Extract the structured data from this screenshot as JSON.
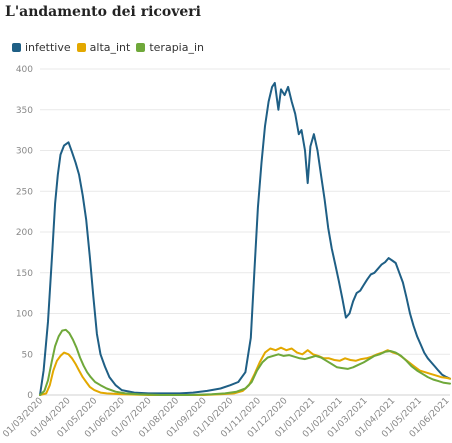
{
  "header": {
    "title": "L'andamento dei ricoveri"
  },
  "chart_data": {
    "type": "line",
    "title": "L'andamento dei ricoveri",
    "xlabel": "",
    "ylabel": "",
    "ylim": [
      0,
      400
    ],
    "yticks": [
      0,
      50,
      100,
      150,
      200,
      250,
      300,
      350,
      400
    ],
    "xlim": [
      "2020-03-01",
      "2021-06-05"
    ],
    "xticks": [
      "01/03/2020",
      "01/04/2020",
      "01/05/2020",
      "01/06/2020",
      "01/07/2020",
      "01/08/2020",
      "01/09/2020",
      "01/10/2020",
      "01/11/2020",
      "01/12/2020",
      "01/01/2021",
      "01/02/2021",
      "01/03/2021",
      "01/04/2021",
      "01/05/2021",
      "01/06/2021"
    ],
    "grid": "horizontal",
    "legend_position": "top-left",
    "series": [
      {
        "name": "infettive",
        "color": "#1f5f85",
        "points": [
          [
            "2020-03-01",
            0
          ],
          [
            "2020-03-05",
            30
          ],
          [
            "2020-03-10",
            90
          ],
          [
            "2020-03-15",
            180
          ],
          [
            "2020-03-18",
            235
          ],
          [
            "2020-03-21",
            270
          ],
          [
            "2020-03-24",
            295
          ],
          [
            "2020-03-28",
            306
          ],
          [
            "2020-04-02",
            310
          ],
          [
            "2020-04-06",
            298
          ],
          [
            "2020-04-10",
            285
          ],
          [
            "2020-04-14",
            270
          ],
          [
            "2020-04-18",
            245
          ],
          [
            "2020-04-22",
            215
          ],
          [
            "2020-04-26",
            170
          ],
          [
            "2020-04-30",
            120
          ],
          [
            "2020-05-04",
            75
          ],
          [
            "2020-05-08",
            50
          ],
          [
            "2020-05-13",
            35
          ],
          [
            "2020-05-18",
            22
          ],
          [
            "2020-05-25",
            12
          ],
          [
            "2020-06-01",
            6
          ],
          [
            "2020-06-15",
            3
          ],
          [
            "2020-07-01",
            2
          ],
          [
            "2020-07-20",
            2
          ],
          [
            "2020-08-05",
            2
          ],
          [
            "2020-08-20",
            3
          ],
          [
            "2020-09-05",
            5
          ],
          [
            "2020-09-20",
            8
          ],
          [
            "2020-10-01",
            12
          ],
          [
            "2020-10-10",
            16
          ],
          [
            "2020-10-18",
            28
          ],
          [
            "2020-10-24",
            70
          ],
          [
            "2020-10-28",
            150
          ],
          [
            "2020-11-01",
            230
          ],
          [
            "2020-11-05",
            285
          ],
          [
            "2020-11-09",
            330
          ],
          [
            "2020-11-13",
            360
          ],
          [
            "2020-11-17",
            378
          ],
          [
            "2020-11-20",
            383
          ],
          [
            "2020-11-24",
            350
          ],
          [
            "2020-11-27",
            375
          ],
          [
            "2020-12-01",
            368
          ],
          [
            "2020-12-05",
            378
          ],
          [
            "2020-12-09",
            360
          ],
          [
            "2020-12-13",
            345
          ],
          [
            "2020-12-17",
            320
          ],
          [
            "2020-12-20",
            325
          ],
          [
            "2020-12-24",
            300
          ],
          [
            "2020-12-27",
            260
          ],
          [
            "2020-12-30",
            305
          ],
          [
            "2021-01-03",
            320
          ],
          [
            "2021-01-07",
            300
          ],
          [
            "2021-01-11",
            270
          ],
          [
            "2021-01-15",
            240
          ],
          [
            "2021-01-19",
            205
          ],
          [
            "2021-01-23",
            180
          ],
          [
            "2021-01-27",
            160
          ],
          [
            "2021-01-31",
            140
          ],
          [
            "2021-02-04",
            118
          ],
          [
            "2021-02-08",
            95
          ],
          [
            "2021-02-12",
            100
          ],
          [
            "2021-02-16",
            115
          ],
          [
            "2021-02-20",
            125
          ],
          [
            "2021-02-24",
            128
          ],
          [
            "2021-02-28",
            135
          ],
          [
            "2021-03-04",
            142
          ],
          [
            "2021-03-08",
            148
          ],
          [
            "2021-03-12",
            150
          ],
          [
            "2021-03-16",
            155
          ],
          [
            "2021-03-20",
            160
          ],
          [
            "2021-03-24",
            163
          ],
          [
            "2021-03-28",
            168
          ],
          [
            "2021-04-01",
            165
          ],
          [
            "2021-04-05",
            162
          ],
          [
            "2021-04-09",
            150
          ],
          [
            "2021-04-13",
            138
          ],
          [
            "2021-04-17",
            120
          ],
          [
            "2021-04-21",
            100
          ],
          [
            "2021-04-25",
            85
          ],
          [
            "2021-04-29",
            72
          ],
          [
            "2021-05-03",
            62
          ],
          [
            "2021-05-07",
            52
          ],
          [
            "2021-05-11",
            45
          ],
          [
            "2021-05-15",
            40
          ],
          [
            "2021-05-19",
            35
          ],
          [
            "2021-05-23",
            30
          ],
          [
            "2021-05-27",
            25
          ],
          [
            "2021-06-01",
            22
          ],
          [
            "2021-06-05",
            20
          ]
        ]
      },
      {
        "name": "alta_int",
        "color": "#e3a800",
        "points": [
          [
            "2020-03-01",
            0
          ],
          [
            "2020-03-08",
            2
          ],
          [
            "2020-03-12",
            12
          ],
          [
            "2020-03-16",
            30
          ],
          [
            "2020-03-20",
            42
          ],
          [
            "2020-03-24",
            48
          ],
          [
            "2020-03-28",
            52
          ],
          [
            "2020-04-02",
            50
          ],
          [
            "2020-04-06",
            45
          ],
          [
            "2020-04-10",
            38
          ],
          [
            "2020-04-14",
            30
          ],
          [
            "2020-04-18",
            22
          ],
          [
            "2020-04-22",
            16
          ],
          [
            "2020-04-26",
            10
          ],
          [
            "2020-05-01",
            6
          ],
          [
            "2020-05-08",
            3
          ],
          [
            "2020-05-15",
            2
          ],
          [
            "2020-06-01",
            1
          ],
          [
            "2020-07-01",
            0
          ],
          [
            "2020-08-01",
            0
          ],
          [
            "2020-09-01",
            0
          ],
          [
            "2020-09-20",
            1
          ],
          [
            "2020-10-05",
            2
          ],
          [
            "2020-10-15",
            5
          ],
          [
            "2020-10-22",
            12
          ],
          [
            "2020-10-28",
            25
          ],
          [
            "2020-11-03",
            40
          ],
          [
            "2020-11-09",
            52
          ],
          [
            "2020-11-15",
            57
          ],
          [
            "2020-11-21",
            55
          ],
          [
            "2020-11-27",
            58
          ],
          [
            "2020-12-03",
            55
          ],
          [
            "2020-12-09",
            57
          ],
          [
            "2020-12-15",
            52
          ],
          [
            "2020-12-21",
            50
          ],
          [
            "2020-12-27",
            55
          ],
          [
            "2021-01-02",
            50
          ],
          [
            "2021-01-08",
            48
          ],
          [
            "2021-01-14",
            45
          ],
          [
            "2021-01-20",
            45
          ],
          [
            "2021-01-26",
            43
          ],
          [
            "2021-02-01",
            42
          ],
          [
            "2021-02-07",
            45
          ],
          [
            "2021-02-13",
            43
          ],
          [
            "2021-02-19",
            42
          ],
          [
            "2021-02-25",
            44
          ],
          [
            "2021-03-03",
            45
          ],
          [
            "2021-03-09",
            47
          ],
          [
            "2021-03-15",
            50
          ],
          [
            "2021-03-21",
            52
          ],
          [
            "2021-03-27",
            55
          ],
          [
            "2021-04-02",
            52
          ],
          [
            "2021-04-08",
            50
          ],
          [
            "2021-04-14",
            45
          ],
          [
            "2021-04-20",
            40
          ],
          [
            "2021-04-26",
            35
          ],
          [
            "2021-05-02",
            30
          ],
          [
            "2021-05-08",
            28
          ],
          [
            "2021-05-14",
            26
          ],
          [
            "2021-05-20",
            24
          ],
          [
            "2021-05-26",
            22
          ],
          [
            "2021-06-01",
            21
          ],
          [
            "2021-06-05",
            20
          ]
        ]
      },
      {
        "name": "terapia_in",
        "color": "#6fa83a",
        "points": [
          [
            "2020-03-01",
            0
          ],
          [
            "2020-03-06",
            5
          ],
          [
            "2020-03-10",
            18
          ],
          [
            "2020-03-14",
            40
          ],
          [
            "2020-03-18",
            60
          ],
          [
            "2020-03-22",
            72
          ],
          [
            "2020-03-26",
            79
          ],
          [
            "2020-03-30",
            80
          ],
          [
            "2020-04-03",
            76
          ],
          [
            "2020-04-07",
            68
          ],
          [
            "2020-04-11",
            58
          ],
          [
            "2020-04-15",
            46
          ],
          [
            "2020-04-19",
            36
          ],
          [
            "2020-04-23",
            28
          ],
          [
            "2020-04-27",
            22
          ],
          [
            "2020-05-02",
            16
          ],
          [
            "2020-05-08",
            12
          ],
          [
            "2020-05-15",
            8
          ],
          [
            "2020-05-25",
            4
          ],
          [
            "2020-06-05",
            2
          ],
          [
            "2020-06-20",
            1
          ],
          [
            "2020-07-15",
            0
          ],
          [
            "2020-08-15",
            0
          ],
          [
            "2020-09-10",
            1
          ],
          [
            "2020-09-25",
            2
          ],
          [
            "2020-10-08",
            4
          ],
          [
            "2020-10-18",
            8
          ],
          [
            "2020-10-25",
            16
          ],
          [
            "2020-10-31",
            30
          ],
          [
            "2020-11-06",
            40
          ],
          [
            "2020-11-12",
            46
          ],
          [
            "2020-11-18",
            48
          ],
          [
            "2020-11-24",
            50
          ],
          [
            "2020-11-30",
            48
          ],
          [
            "2020-12-06",
            49
          ],
          [
            "2020-12-12",
            47
          ],
          [
            "2020-12-18",
            45
          ],
          [
            "2020-12-24",
            44
          ],
          [
            "2020-12-30",
            46
          ],
          [
            "2021-01-05",
            48
          ],
          [
            "2021-01-11",
            46
          ],
          [
            "2021-01-17",
            42
          ],
          [
            "2021-01-23",
            38
          ],
          [
            "2021-01-29",
            34
          ],
          [
            "2021-02-04",
            33
          ],
          [
            "2021-02-10",
            32
          ],
          [
            "2021-02-16",
            34
          ],
          [
            "2021-02-22",
            37
          ],
          [
            "2021-02-28",
            40
          ],
          [
            "2021-03-06",
            44
          ],
          [
            "2021-03-12",
            48
          ],
          [
            "2021-03-18",
            50
          ],
          [
            "2021-03-24",
            53
          ],
          [
            "2021-03-30",
            54
          ],
          [
            "2021-04-05",
            52
          ],
          [
            "2021-04-11",
            48
          ],
          [
            "2021-04-17",
            42
          ],
          [
            "2021-04-23",
            35
          ],
          [
            "2021-04-29",
            30
          ],
          [
            "2021-05-05",
            26
          ],
          [
            "2021-05-11",
            22
          ],
          [
            "2021-05-17",
            19
          ],
          [
            "2021-05-23",
            17
          ],
          [
            "2021-05-29",
            15
          ],
          [
            "2021-06-05",
            14
          ]
        ]
      }
    ]
  }
}
